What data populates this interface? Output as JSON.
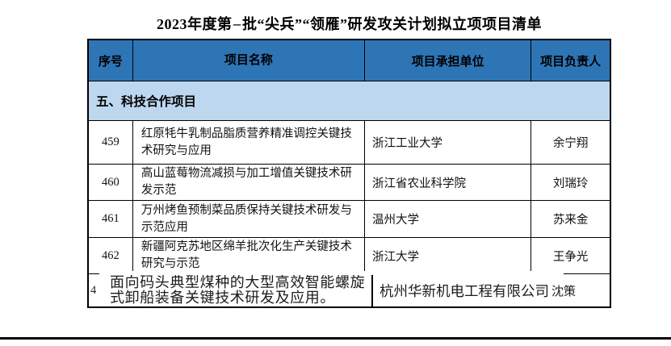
{
  "title": {
    "prefix": "2023年度第",
    "small_char": "一",
    "suffix": "批“尖兵”“领雁”研发攻关计划拟立项项目清单"
  },
  "colors": {
    "header_bg": "#2e75b6",
    "section_bg": "#bdd7ee",
    "border": "#000000"
  },
  "table": {
    "headers": {
      "serial": "序号",
      "name": "项目名称",
      "org": "项目承担单位",
      "leader": "项目负责人"
    },
    "section_title": "五、科技合作项目",
    "rows": [
      {
        "no": "459",
        "name": "红原牦牛乳制品脂质营养精准调控关键技术研究与应用",
        "org": "浙江工业大学",
        "leader": "余宁翔"
      },
      {
        "no": "460",
        "name": "高山蓝莓物流减损与加工增值关键技术研发示范",
        "org": "浙江省农业科学院",
        "leader": "刘瑞玲"
      },
      {
        "no": "461",
        "name": "万州烤鱼预制菜品质保持关键技术研发与示范应用",
        "org": "温州大学",
        "leader": "苏来金"
      },
      {
        "no": "462",
        "name": "新疆阿克苏地区绵羊批次化生产关键技术研究与示范",
        "org": "浙江大学",
        "leader": "王争光"
      }
    ],
    "overlay_row": {
      "no": "4",
      "name": "面向码头典型煤种的大型高效智能螺旋式卸船装备关键技术研发及应用。",
      "org": "杭州华新机电工程有限公司",
      "leader": "沈策"
    }
  }
}
